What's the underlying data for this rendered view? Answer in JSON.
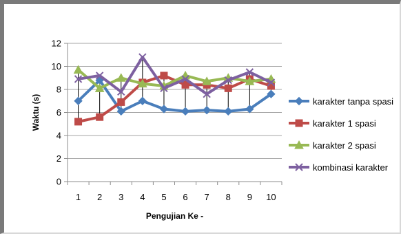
{
  "chart_data": {
    "type": "line",
    "title": "",
    "xlabel": "Pengujian Ke -",
    "ylabel": "Waktu (s)",
    "categories": [
      "1",
      "2",
      "3",
      "4",
      "5",
      "6",
      "7",
      "8",
      "9",
      "10"
    ],
    "ylim": [
      0,
      12
    ],
    "yticks": [
      "0",
      "2",
      "4",
      "6",
      "8",
      "10",
      "12"
    ],
    "grid": "horizontal",
    "legend_position": "right",
    "series": [
      {
        "name": "karakter tanpa spasi",
        "color": "#4a7ebb",
        "marker": "diamond",
        "values": [
          7.0,
          8.8,
          6.1,
          7.0,
          6.3,
          6.1,
          6.2,
          6.1,
          6.3,
          7.6
        ]
      },
      {
        "name": "karakter 1 spasi",
        "color": "#be4b48",
        "marker": "square",
        "values": [
          5.2,
          5.6,
          6.9,
          8.6,
          9.2,
          8.4,
          8.4,
          8.1,
          8.9,
          8.3
        ]
      },
      {
        "name": "karakter 2 spasi",
        "color": "#98b954",
        "marker": "triangle",
        "values": [
          9.7,
          8.1,
          9.0,
          8.5,
          8.3,
          9.2,
          8.7,
          9.0,
          8.7,
          8.9
        ]
      },
      {
        "name": "kombinasi karakter",
        "color": "#7d60a0",
        "marker": "x",
        "values": [
          8.9,
          9.2,
          7.8,
          10.8,
          8.1,
          8.9,
          7.6,
          8.8,
          9.5,
          8.6
        ]
      }
    ]
  }
}
